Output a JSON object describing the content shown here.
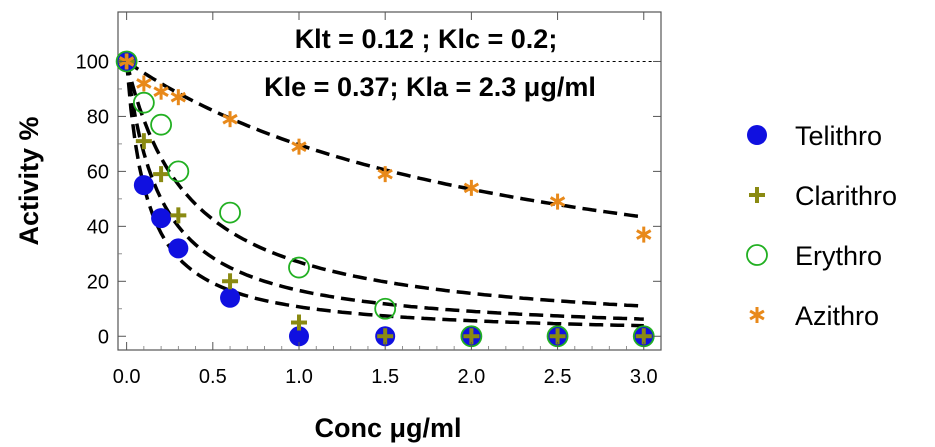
{
  "chart_data": {
    "type": "scatter",
    "xlabel": "Conc μg/ml",
    "ylabel": "Activity %",
    "xlim": [
      -0.05,
      3.1
    ],
    "ylim": [
      -5,
      118
    ],
    "xticks": [
      0.0,
      0.5,
      1.0,
      1.5,
      2.0,
      2.5,
      3.0
    ],
    "xtick_labels": [
      "0.0",
      "0.5",
      "1.0",
      "1.5",
      "2.0",
      "2.5",
      "3.0"
    ],
    "yticks": [
      0,
      20,
      40,
      60,
      80,
      100
    ],
    "ytick_labels": [
      "0",
      "20",
      "40",
      "60",
      "80",
      "100"
    ],
    "annotations": [
      "Klt = 0.12 ; Klc = 0.2;",
      "Kle = 0.37; Kla = 2.3 μg/ml"
    ],
    "reference_line": {
      "y": 100,
      "style": "dashed-thin"
    },
    "series": [
      {
        "name": "Telithro",
        "marker": "filled-circle",
        "color": "#1010e0",
        "x": [
          0,
          0.1,
          0.2,
          0.3,
          0.6,
          1.0,
          1.5,
          2.0,
          2.5,
          3.0
        ],
        "y": [
          100,
          55,
          43,
          32,
          14,
          0,
          0,
          0,
          0,
          0
        ]
      },
      {
        "name": "Clarithro",
        "marker": "plus",
        "color": "#8a8a12",
        "x": [
          0,
          0.1,
          0.2,
          0.3,
          0.6,
          1.0,
          1.5,
          2.0,
          2.5,
          3.0
        ],
        "y": [
          100,
          71,
          59,
          44,
          20,
          5,
          0,
          0,
          0,
          0
        ]
      },
      {
        "name": "Erythro",
        "marker": "open-circle",
        "color": "#22b022",
        "x": [
          0,
          0.1,
          0.2,
          0.3,
          0.6,
          1.0,
          1.5,
          2.0,
          2.5,
          3.0
        ],
        "y": [
          100,
          85,
          77,
          60,
          45,
          25,
          10,
          0,
          0,
          0
        ]
      },
      {
        "name": "Azithro",
        "marker": "asterisk",
        "color": "#e8891a",
        "x": [
          0,
          0.1,
          0.2,
          0.3,
          0.6,
          1.0,
          1.5,
          2.0,
          2.5,
          3.0
        ],
        "y": [
          100,
          92,
          89,
          87,
          79,
          69,
          59,
          54,
          49,
          37
        ]
      }
    ],
    "fit_curves": [
      {
        "K": 2.3
      },
      {
        "K": 0.37
      },
      {
        "K": 0.2
      },
      {
        "K": 0.12
      }
    ],
    "grid": false,
    "legend_position": "right"
  }
}
